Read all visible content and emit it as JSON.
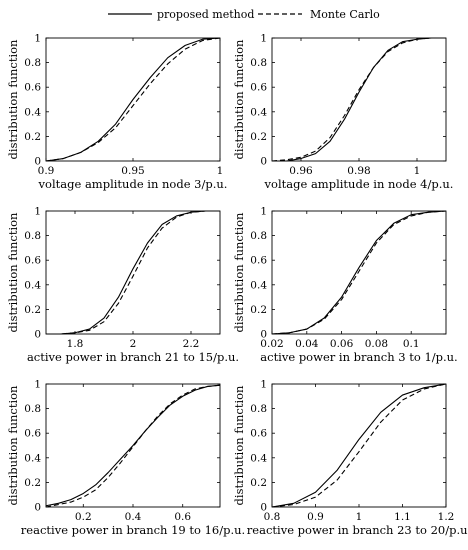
{
  "legend": [
    {
      "label": "proposed method",
      "style": "solid"
    },
    {
      "label": "Monte Carlo",
      "style": "dashed"
    }
  ],
  "chart_data": [
    {
      "type": "line",
      "xlabel": "voltage amplitude in node 3/p.u.",
      "ylabel": "distribution function",
      "xlim": [
        0.9,
        1.0
      ],
      "ylim": [
        0,
        1
      ],
      "xticks": [
        "0.9",
        "0.95",
        "1"
      ],
      "yticks": [
        "0",
        "0.2",
        "0.4",
        "0.6",
        "0.8",
        "1"
      ],
      "series": [
        {
          "name": "proposed method",
          "style": "solid",
          "x": [
            0.9,
            0.91,
            0.92,
            0.93,
            0.94,
            0.95,
            0.96,
            0.97,
            0.98,
            0.99,
            1.0
          ],
          "y": [
            0.0,
            0.02,
            0.07,
            0.16,
            0.3,
            0.5,
            0.68,
            0.84,
            0.94,
            0.99,
            1.0
          ]
        },
        {
          "name": "Monte Carlo",
          "style": "dashed",
          "x": [
            0.9,
            0.91,
            0.92,
            0.93,
            0.94,
            0.95,
            0.96,
            0.97,
            0.98,
            0.99,
            1.0
          ],
          "y": [
            0.0,
            0.02,
            0.07,
            0.15,
            0.27,
            0.45,
            0.63,
            0.79,
            0.91,
            0.98,
            1.0
          ]
        }
      ]
    },
    {
      "type": "line",
      "xlabel": "voltage amplitude in node 4/p.u.",
      "ylabel": "distribution function",
      "xlim": [
        0.95,
        1.01
      ],
      "ylim": [
        0,
        1
      ],
      "xticks": [
        "0.96",
        "0.98",
        "1"
      ],
      "yticks": [
        "0",
        "0.2",
        "0.4",
        "0.6",
        "0.8",
        "1"
      ],
      "series": [
        {
          "name": "proposed method",
          "style": "solid",
          "x": [
            0.95,
            0.955,
            0.96,
            0.965,
            0.97,
            0.975,
            0.98,
            0.985,
            0.99,
            0.995,
            1.0,
            1.005,
            1.01
          ],
          "y": [
            0.0,
            0.0,
            0.02,
            0.06,
            0.16,
            0.34,
            0.56,
            0.76,
            0.9,
            0.97,
            0.99,
            1.0,
            1.0
          ]
        },
        {
          "name": "Monte Carlo",
          "style": "dashed",
          "x": [
            0.95,
            0.955,
            0.96,
            0.965,
            0.97,
            0.975,
            0.98,
            0.985,
            0.99,
            0.995,
            1.0,
            1.005,
            1.01
          ],
          "y": [
            0.0,
            0.01,
            0.03,
            0.08,
            0.19,
            0.37,
            0.58,
            0.76,
            0.89,
            0.96,
            0.99,
            1.0,
            1.0
          ]
        }
      ]
    },
    {
      "type": "line",
      "xlabel": "active power in branch 21 to 15/p.u.",
      "ylabel": "distribution function",
      "xlim": [
        1.7,
        2.3
      ],
      "ylim": [
        0,
        1
      ],
      "xticks": [
        "1.8",
        "2",
        "2.2"
      ],
      "yticks": [
        "0",
        "0.2",
        "0.4",
        "0.6",
        "0.8",
        "1"
      ],
      "series": [
        {
          "name": "proposed method",
          "style": "solid",
          "x": [
            1.7,
            1.75,
            1.8,
            1.85,
            1.9,
            1.95,
            2.0,
            2.05,
            2.1,
            2.15,
            2.2,
            2.25,
            2.3
          ],
          "y": [
            0.0,
            0.0,
            0.01,
            0.04,
            0.13,
            0.3,
            0.53,
            0.74,
            0.89,
            0.96,
            0.99,
            1.0,
            1.0
          ]
        },
        {
          "name": "Monte Carlo",
          "style": "dashed",
          "x": [
            1.7,
            1.75,
            1.8,
            1.85,
            1.9,
            1.95,
            2.0,
            2.05,
            2.1,
            2.15,
            2.2,
            2.25,
            2.3
          ],
          "y": [
            0.0,
            0.0,
            0.01,
            0.03,
            0.1,
            0.25,
            0.47,
            0.7,
            0.86,
            0.95,
            0.99,
            1.0,
            1.0
          ]
        }
      ]
    },
    {
      "type": "line",
      "xlabel": "active power in branch 3 to 1/p.u.",
      "ylabel": "distribution function",
      "xlim": [
        0.02,
        0.12
      ],
      "ylim": [
        0,
        1
      ],
      "xticks": [
        "0.02",
        "0.04",
        "0.06",
        "0.08",
        "0.1"
      ],
      "yticks": [
        "0",
        "0.2",
        "0.4",
        "0.6",
        "0.8",
        "1"
      ],
      "series": [
        {
          "name": "proposed method",
          "style": "solid",
          "x": [
            0.02,
            0.03,
            0.04,
            0.05,
            0.06,
            0.07,
            0.08,
            0.09,
            0.1,
            0.11,
            0.12
          ],
          "y": [
            0.0,
            0.01,
            0.04,
            0.13,
            0.3,
            0.54,
            0.76,
            0.9,
            0.97,
            0.99,
            1.0
          ]
        },
        {
          "name": "Monte Carlo",
          "style": "dashed",
          "x": [
            0.02,
            0.03,
            0.04,
            0.05,
            0.06,
            0.07,
            0.08,
            0.09,
            0.1,
            0.11,
            0.12
          ],
          "y": [
            0.0,
            0.01,
            0.04,
            0.12,
            0.28,
            0.51,
            0.74,
            0.89,
            0.96,
            0.99,
            1.0
          ]
        }
      ]
    },
    {
      "type": "line",
      "xlabel": "reactive power in branch 19 to 16/p.u.",
      "ylabel": "distribution function",
      "xlim": [
        0.05,
        0.75
      ],
      "ylim": [
        0,
        1
      ],
      "xticks": [
        "0.2",
        "0.4",
        "0.6"
      ],
      "yticks": [
        "0",
        "0.2",
        "0.4",
        "0.6",
        "0.8",
        "1"
      ],
      "series": [
        {
          "name": "proposed method",
          "style": "solid",
          "x": [
            0.05,
            0.1,
            0.15,
            0.2,
            0.25,
            0.3,
            0.35,
            0.4,
            0.45,
            0.5,
            0.55,
            0.6,
            0.65,
            0.7,
            0.75
          ],
          "y": [
            0.01,
            0.03,
            0.06,
            0.11,
            0.18,
            0.28,
            0.39,
            0.5,
            0.62,
            0.73,
            0.83,
            0.9,
            0.95,
            0.98,
            0.99
          ]
        },
        {
          "name": "Monte Carlo",
          "style": "dashed",
          "x": [
            0.05,
            0.1,
            0.15,
            0.2,
            0.25,
            0.3,
            0.35,
            0.4,
            0.45,
            0.5,
            0.55,
            0.6,
            0.65,
            0.7,
            0.75
          ],
          "y": [
            0.0,
            0.02,
            0.04,
            0.08,
            0.14,
            0.24,
            0.36,
            0.49,
            0.62,
            0.74,
            0.84,
            0.91,
            0.96,
            0.98,
            0.99
          ]
        }
      ]
    },
    {
      "type": "line",
      "xlabel": "reactive power in branch 23 to 20/p.u.",
      "ylabel": "distribution function",
      "xlim": [
        0.8,
        1.2
      ],
      "ylim": [
        0,
        1
      ],
      "xticks": [
        "0.8",
        "0.9",
        "1",
        "1.1",
        "1.2"
      ],
      "yticks": [
        "0",
        "0.2",
        "0.4",
        "0.6",
        "0.8",
        "1"
      ],
      "series": [
        {
          "name": "proposed method",
          "style": "solid",
          "x": [
            0.8,
            0.85,
            0.9,
            0.95,
            1.0,
            1.05,
            1.1,
            1.15,
            1.2
          ],
          "y": [
            0.0,
            0.03,
            0.12,
            0.3,
            0.55,
            0.77,
            0.91,
            0.97,
            1.0
          ]
        },
        {
          "name": "Monte Carlo",
          "style": "dashed",
          "x": [
            0.8,
            0.85,
            0.9,
            0.95,
            1.0,
            1.05,
            1.1,
            1.15,
            1.2
          ],
          "y": [
            0.0,
            0.02,
            0.08,
            0.22,
            0.45,
            0.69,
            0.87,
            0.96,
            1.0
          ]
        }
      ]
    }
  ]
}
